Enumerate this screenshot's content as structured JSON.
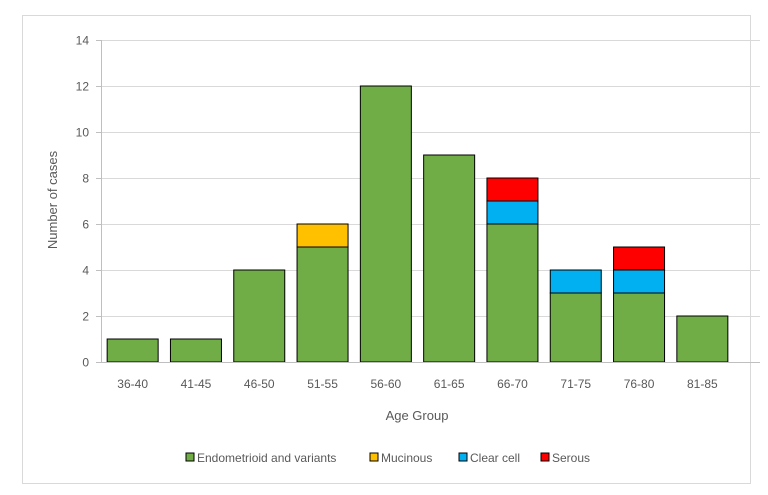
{
  "chart_data": {
    "type": "bar",
    "stacked": true,
    "title": "",
    "xlabel": "Age Group",
    "ylabel": "Number of cases",
    "ylim": [
      0,
      14
    ],
    "yticks": [
      0,
      2,
      4,
      6,
      8,
      10,
      12,
      14
    ],
    "grid": true,
    "legend_position": "bottom",
    "categories": [
      "36-40",
      "41-45",
      "46-50",
      "51-55",
      "56-60",
      "61-65",
      "66-70",
      "71-75",
      "76-80",
      "81-85"
    ],
    "series": [
      {
        "name": "Endometrioid  and variants",
        "color": "#70AD47",
        "values": [
          1,
          1,
          4,
          5,
          12,
          9,
          6,
          3,
          3,
          2
        ]
      },
      {
        "name": "Mucinous",
        "color": "#FFC000",
        "values": [
          0,
          0,
          0,
          1,
          0,
          0,
          0,
          0,
          0,
          0
        ]
      },
      {
        "name": "Clear cell",
        "color": "#00B0F0",
        "values": [
          0,
          0,
          0,
          0,
          0,
          0,
          1,
          1,
          1,
          0
        ]
      },
      {
        "name": "Serous",
        "color": "#FF0000",
        "values": [
          0,
          0,
          0,
          0,
          0,
          0,
          1,
          0,
          1,
          0
        ]
      }
    ]
  }
}
